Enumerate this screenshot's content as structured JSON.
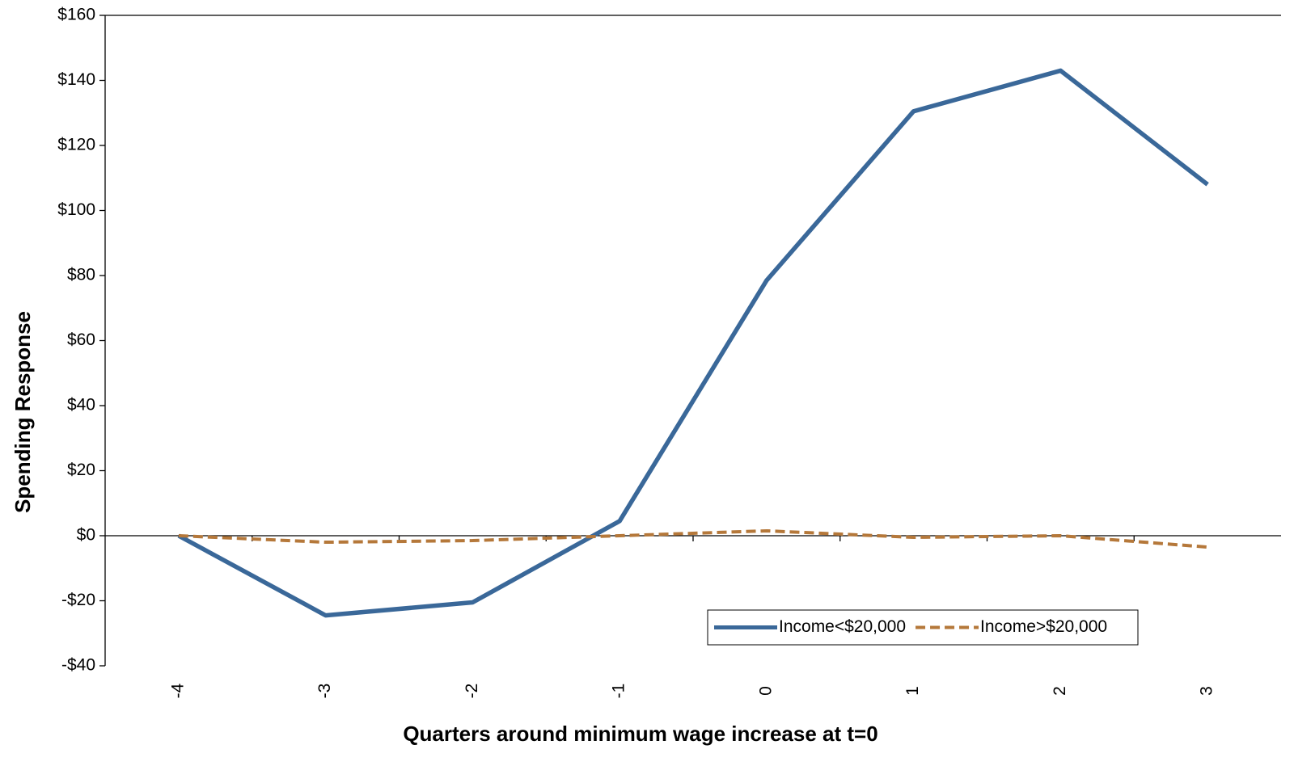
{
  "chart_data": {
    "type": "line",
    "x_label": "Quarters around minimum wage increase at t=0",
    "y_label": "Spending Response",
    "categories": [
      "-4",
      "-3",
      "-2",
      "-1",
      "0",
      "1",
      "2",
      "3"
    ],
    "series": [
      {
        "name": "Income<$20,000",
        "color": "#3a6899",
        "line_style": "solid",
        "values": [
          0,
          -24.5,
          -20.5,
          4.5,
          78.5,
          130.5,
          143,
          108
        ]
      },
      {
        "name": "Income>$20,000",
        "color": "#b5783a",
        "line_style": "dashed",
        "values": [
          0,
          -2,
          -1.5,
          0,
          1.5,
          -0.5,
          0,
          -3.5
        ]
      }
    ],
    "ylim": [
      -40,
      160
    ],
    "yticks": [
      {
        "value": -40,
        "label": "-$40"
      },
      {
        "value": -20,
        "label": "-$20"
      },
      {
        "value": 0,
        "label": "$0"
      },
      {
        "value": 20,
        "label": "$20"
      },
      {
        "value": 40,
        "label": "$40"
      },
      {
        "value": 60,
        "label": "$60"
      },
      {
        "value": 80,
        "label": "$80"
      },
      {
        "value": 100,
        "label": "$100"
      },
      {
        "value": 120,
        "label": "$120"
      },
      {
        "value": 140,
        "label": "$140"
      },
      {
        "value": 160,
        "label": "$160"
      }
    ],
    "grid": false,
    "legend_position": "lower right"
  }
}
